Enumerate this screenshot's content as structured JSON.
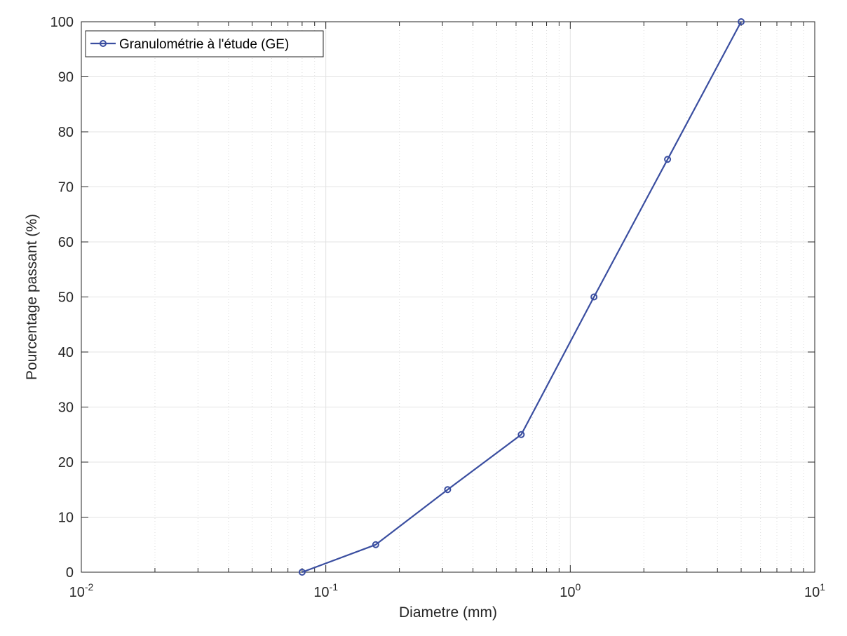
{
  "chart_data": {
    "type": "line",
    "x_scale": "log",
    "xlabel": "Diametre (mm)",
    "ylabel": "Pourcentage passant (%)",
    "xlim": [
      0.01,
      10
    ],
    "ylim": [
      0,
      100
    ],
    "x_ticks": [
      {
        "value": 0.01,
        "base": "10",
        "exp": "-2"
      },
      {
        "value": 0.1,
        "base": "10",
        "exp": "-1"
      },
      {
        "value": 1,
        "base": "10",
        "exp": "0"
      },
      {
        "value": 10,
        "base": "10",
        "exp": "1"
      }
    ],
    "y_ticks": [
      "0",
      "10",
      "20",
      "30",
      "40",
      "50",
      "60",
      "70",
      "80",
      "90",
      "100"
    ],
    "grid": true,
    "minor_grid": true,
    "legend_position": "top-left",
    "series": [
      {
        "name": "Granulométrie à l'étude (GE)",
        "color": "#3a4ea0",
        "marker": "circle",
        "x": [
          0.08,
          0.16,
          0.315,
          0.63,
          1.25,
          2.5,
          5
        ],
        "y": [
          0,
          5,
          15,
          25,
          50,
          75,
          100
        ]
      }
    ]
  }
}
